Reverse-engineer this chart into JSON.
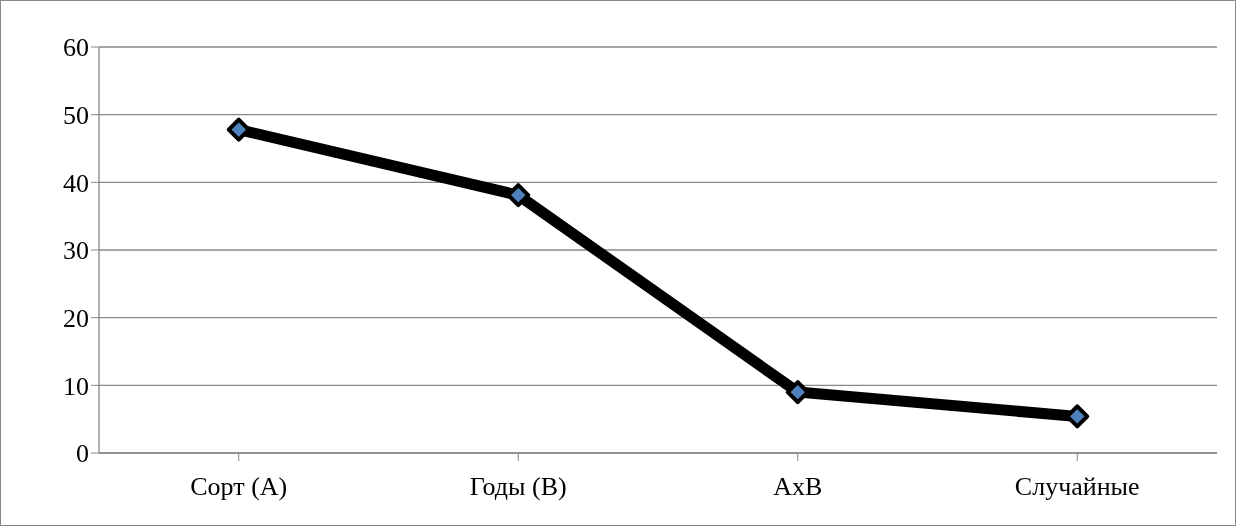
{
  "chart_data": {
    "type": "line",
    "categories": [
      "Сорт (А)",
      "Годы (В)",
      "АхВ",
      "Случайные"
    ],
    "series": [
      {
        "color": "#000000",
        "values": [
          47.8,
          38.1,
          9.0,
          5.4
        ]
      }
    ],
    "ylim": [
      0,
      60
    ],
    "yticks": [
      0,
      10,
      20,
      30,
      40,
      50,
      60
    ],
    "grid": "y",
    "marker": "diamond",
    "line_style": "solid"
  }
}
